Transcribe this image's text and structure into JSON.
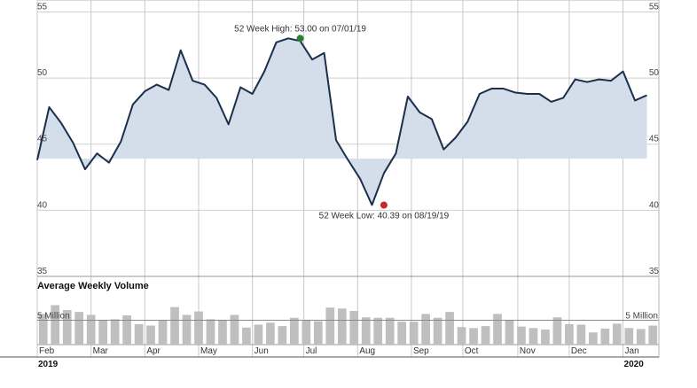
{
  "chart_data": [
    {
      "type": "area",
      "yticks": [
        "55",
        "50",
        "45",
        "40",
        "35"
      ],
      "ytick_values": [
        55,
        50,
        45,
        40,
        35
      ],
      "ylim": [
        35,
        55.5
      ],
      "baseline": 43.9,
      "high_label": "52 Week High: 53.00 on 07/01/19",
      "high_value": 53.0,
      "high_index": 22,
      "low_label": "52 Week Low: 40.39 on 08/19/19",
      "low_value": 40.39,
      "low_index": 29,
      "x_range": [
        0,
        52
      ],
      "series_color": "#1b2e4b",
      "fill_color": "#d3deea",
      "high_color": "#2e7d32",
      "low_color": "#c62828",
      "values": [
        43.8,
        47.8,
        46.6,
        45.1,
        43.1,
        44.3,
        43.6,
        45.2,
        48.0,
        49.0,
        49.5,
        49.1,
        52.1,
        49.8,
        49.5,
        48.5,
        46.5,
        49.3,
        48.8,
        50.5,
        52.7,
        53.0,
        52.8,
        51.4,
        51.9,
        45.3,
        43.8,
        42.4,
        40.4,
        42.8,
        44.3,
        48.6,
        47.4,
        46.9,
        44.6,
        45.5,
        46.7,
        48.8,
        49.2,
        49.2,
        48.9,
        48.8,
        48.8,
        48.2,
        48.5,
        49.9,
        49.7,
        49.9,
        49.8,
        50.5,
        48.3,
        48.7
      ]
    },
    {
      "type": "bar",
      "title": "Average Weekly Volume",
      "reference_label_left": "5 Million",
      "reference_label_right": "5 Million",
      "reference_value": 5,
      "ylim": [
        0,
        10
      ],
      "bar_color": "#bfbfbf",
      "values": [
        6.3,
        8.1,
        7.1,
        6.7,
        6.1,
        5.1,
        5.2,
        6.0,
        4.2,
        3.9,
        5.0,
        7.7,
        6.1,
        6.8,
        5.2,
        5.1,
        6.1,
        3.5,
        4.1,
        4.5,
        3.8,
        5.5,
        5.1,
        4.8,
        7.6,
        7.4,
        6.9,
        5.6,
        5.5,
        5.5,
        4.7,
        4.7,
        6.3,
        5.5,
        6.7,
        3.6,
        3.4,
        3.8,
        6.3,
        5.0,
        3.7,
        3.4,
        3.1,
        5.6,
        4.2,
        4.1,
        2.5,
        3.3,
        4.3,
        3.4,
        3.2,
        3.9
      ],
      "month_labels": [
        {
          "label": "Feb",
          "index": 0
        },
        {
          "label": "Mar",
          "index": 4.5
        },
        {
          "label": "Apr",
          "index": 9
        },
        {
          "label": "May",
          "index": 13.5
        },
        {
          "label": "Jun",
          "index": 18
        },
        {
          "label": "Jul",
          "index": 22.3
        },
        {
          "label": "Aug",
          "index": 26.8
        },
        {
          "label": "Sep",
          "index": 31.3
        },
        {
          "label": "Oct",
          "index": 35.6
        },
        {
          "label": "Nov",
          "index": 40.2
        },
        {
          "label": "Dec",
          "index": 44.5
        },
        {
          "label": "Jan",
          "index": 49
        }
      ],
      "year_labels": [
        {
          "label": "2019",
          "index": 0
        },
        {
          "label": "2020",
          "index": 49
        }
      ]
    }
  ]
}
